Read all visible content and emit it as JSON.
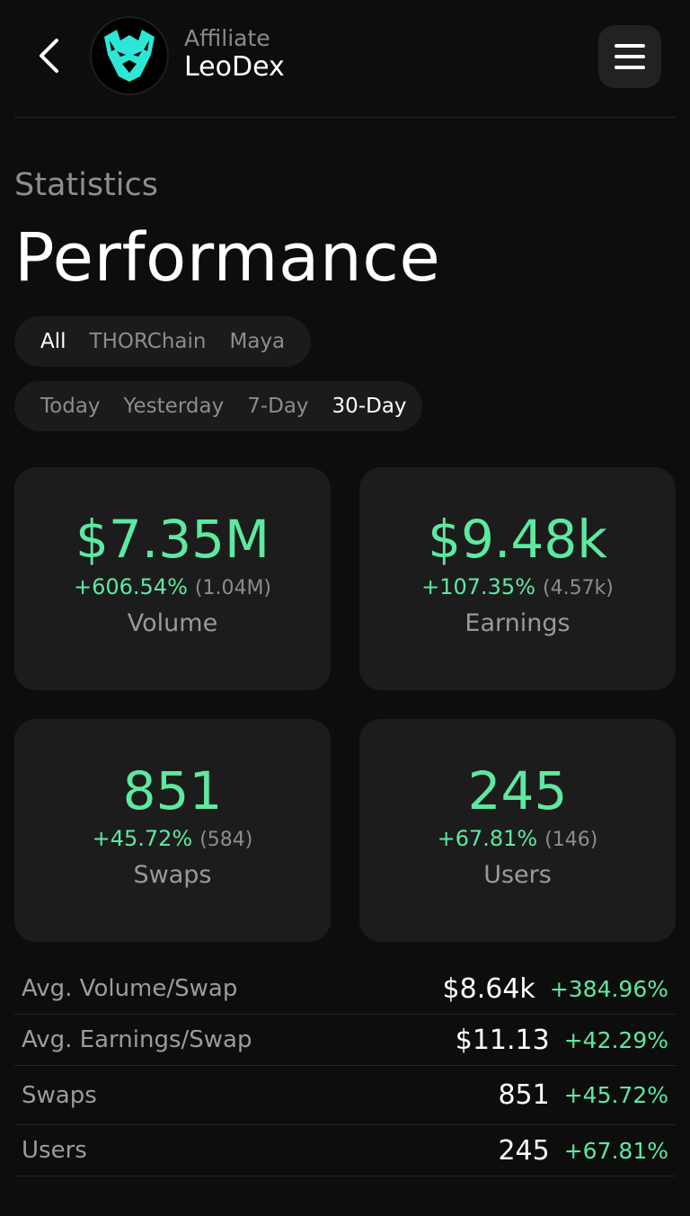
{
  "header": {
    "affiliate_label": "Affiliate",
    "name": "LeoDex"
  },
  "section_label": "Statistics",
  "page_title": "Performance",
  "network_tabs": [
    {
      "label": "All",
      "active": true
    },
    {
      "label": "THORChain",
      "active": false
    },
    {
      "label": "Maya",
      "active": false
    }
  ],
  "period_tabs": [
    {
      "label": "Today",
      "active": false
    },
    {
      "label": "Yesterday",
      "active": false
    },
    {
      "label": "7-Day",
      "active": false
    },
    {
      "label": "30-Day",
      "active": true
    }
  ],
  "cards": {
    "volume": {
      "value": "$7.35M",
      "change": "+606.54%",
      "previous": "(1.04M)",
      "label": "Volume"
    },
    "earnings": {
      "value": "$9.48k",
      "change": "+107.35%",
      "previous": "(4.57k)",
      "label": "Earnings"
    },
    "swaps": {
      "value": "851",
      "change": "+45.72%",
      "previous": "(584)",
      "label": "Swaps"
    },
    "users": {
      "value": "245",
      "change": "+67.81%",
      "previous": "(146)",
      "label": "Users"
    }
  },
  "stats": [
    {
      "label": "Avg. Volume/Swap",
      "value": "$8.64k",
      "change": "+384.96%"
    },
    {
      "label": "Avg. Earnings/Swap",
      "value": "$11.13",
      "change": "+42.29%"
    },
    {
      "label": "Swaps",
      "value": "851",
      "change": "+45.72%"
    },
    {
      "label": "Users",
      "value": "245",
      "change": "+67.81%"
    }
  ],
  "colors": {
    "accent": "#5ee8a0",
    "logo": "#2ee6d6",
    "background": "#0d0d0d",
    "card": "#1c1c1c"
  },
  "icons": {
    "back": "chevron-left-icon",
    "menu": "hamburger-icon",
    "logo": "lion-logo-icon"
  }
}
